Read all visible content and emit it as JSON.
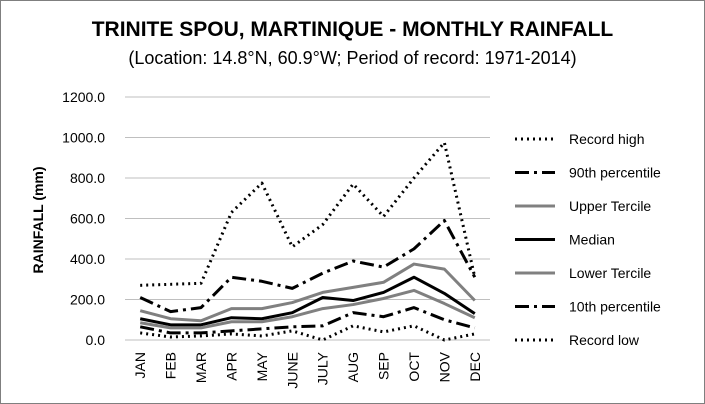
{
  "chart_data": {
    "type": "line",
    "title": "TRINITE SPOU, MARTINIQUE - MONTHLY RAINFALL",
    "subtitle": "(Location: 14.8°N, 60.9°W; Period of record: 1971-2014)",
    "xlabel": "",
    "ylabel": "RAINFALL (mm)",
    "ylim": [
      0,
      1200
    ],
    "yticks": [
      "0.0",
      "200.0",
      "400.0",
      "600.0",
      "800.0",
      "1000.0",
      "1200.0"
    ],
    "categories": [
      "JAN",
      "FEB",
      "MAR",
      "APR",
      "MAY",
      "JUNE",
      "JULY",
      "AUG",
      "SEP",
      "OCT",
      "NOV",
      "DEC"
    ],
    "grid": true,
    "legend_position": "right",
    "series": [
      {
        "name": "Record high",
        "color": "#000000",
        "dash": "dotted",
        "values": [
          270,
          275,
          280,
          630,
          775,
          460,
          570,
          770,
          610,
          800,
          975,
          310
        ]
      },
      {
        "name": "90th percentile",
        "color": "#000000",
        "dash": "dashdot",
        "values": [
          210,
          140,
          160,
          310,
          290,
          255,
          330,
          390,
          360,
          450,
          590,
          310
        ]
      },
      {
        "name": "Upper Tercile",
        "color": "#808080",
        "dash": "solid",
        "values": [
          145,
          105,
          95,
          155,
          155,
          185,
          235,
          260,
          285,
          375,
          350,
          195
        ]
      },
      {
        "name": "Median",
        "color": "#000000",
        "dash": "solid",
        "values": [
          105,
          75,
          75,
          110,
          105,
          135,
          210,
          195,
          235,
          310,
          230,
          130
        ]
      },
      {
        "name": "Lower Tercile",
        "color": "#808080",
        "dash": "solid",
        "values": [
          85,
          60,
          60,
          90,
          90,
          115,
          155,
          175,
          205,
          245,
          180,
          110
        ]
      },
      {
        "name": "10th percentile",
        "color": "#000000",
        "dash": "dashdot",
        "values": [
          65,
          35,
          35,
          45,
          55,
          65,
          70,
          135,
          115,
          160,
          100,
          60
        ]
      },
      {
        "name": "Record low",
        "color": "#000000",
        "dash": "dotted",
        "values": [
          35,
          15,
          20,
          30,
          20,
          45,
          0,
          70,
          40,
          70,
          0,
          30
        ]
      }
    ]
  }
}
